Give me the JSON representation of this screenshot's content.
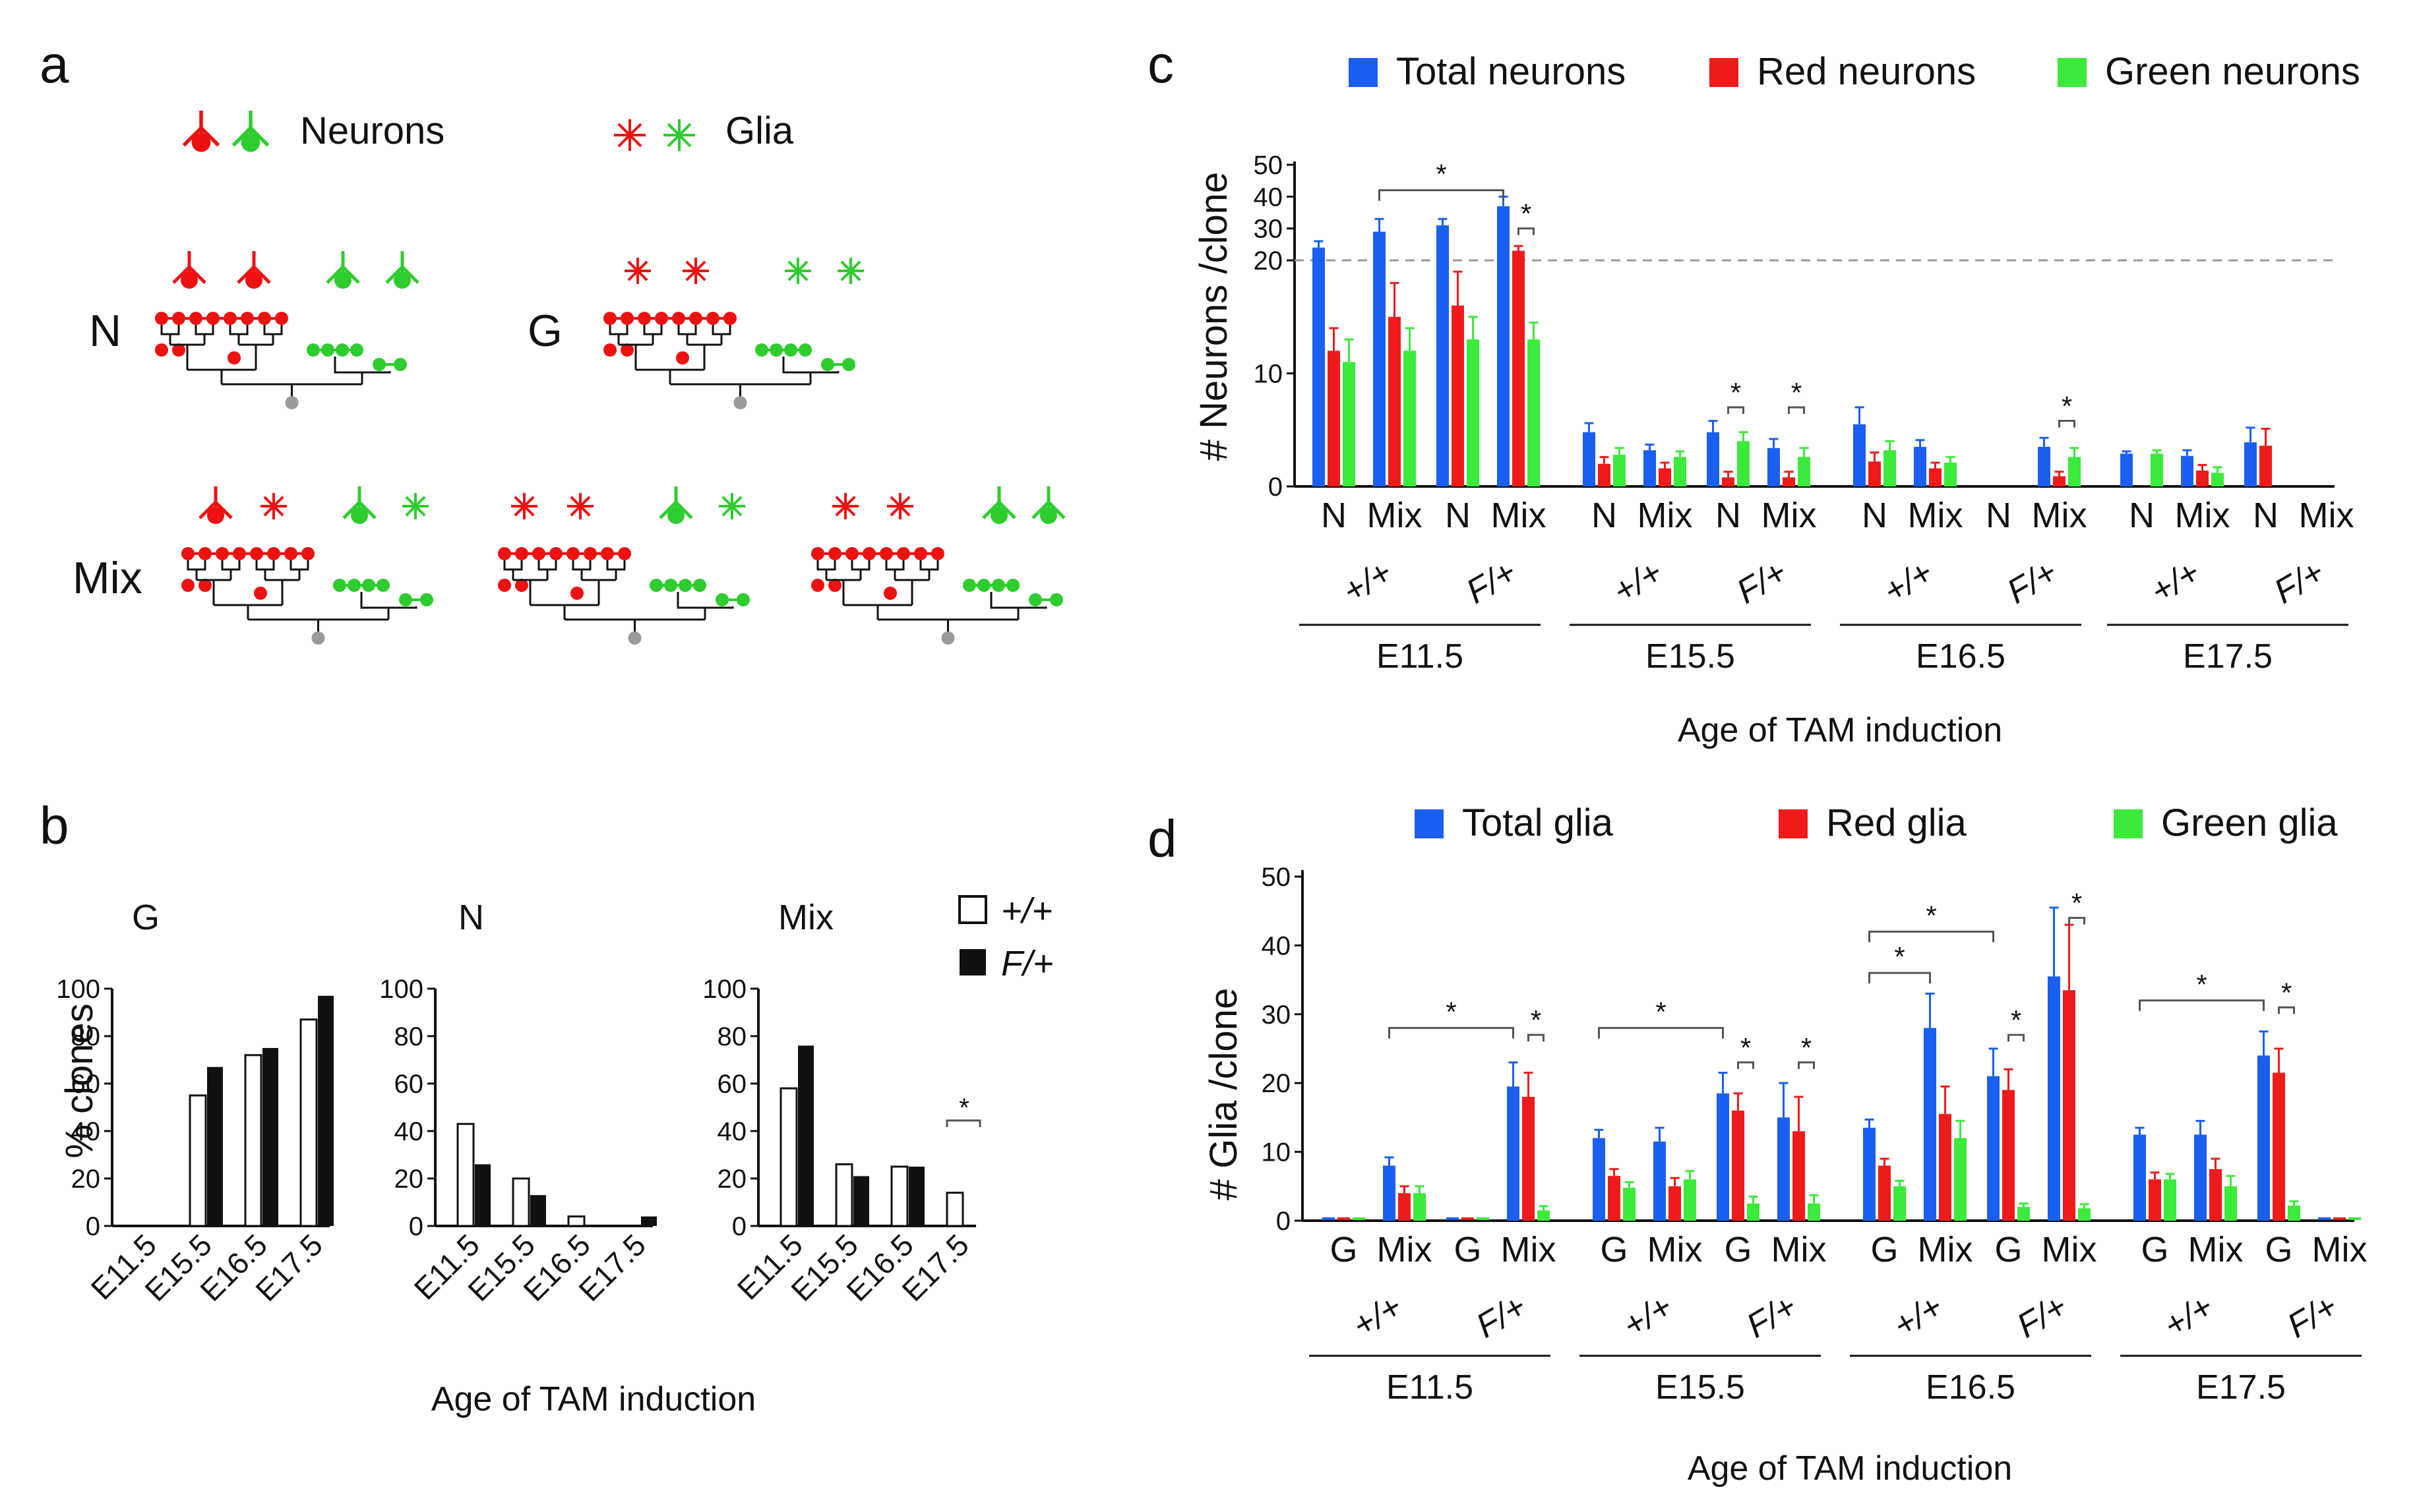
{
  "colors": {
    "red": "#ee1111",
    "green": "#2ecc2e",
    "blue": "#1656e8",
    "black": "#111111",
    "gray": "#999999",
    "chart_blue": "#1a5ff0",
    "chart_red": "#ef1b1b",
    "chart_green": "#3bea3b"
  },
  "panel_a": {
    "letter": "a",
    "legend_neurons": "Neurons",
    "legend_glia": "Glia",
    "label_n": "N",
    "label_g": "G",
    "label_mix": "Mix"
  },
  "panel_b": {
    "letter": "b",
    "legend_wt": "+/+",
    "legend_mut": "F/+",
    "xlabel": "Age of TAM induction",
    "ylabel": "% clones"
  },
  "panel_c": {
    "letter": "c",
    "ylabel": "# Neurons /clone",
    "xlabel": "Age of TAM induction"
  },
  "panel_d": {
    "letter": "d",
    "ylabel": "# Glia /clone",
    "xlabel": "Age of TAM induction"
  },
  "chart_data": [
    {
      "id": "b",
      "type": "bar",
      "panels": [
        {
          "title": "G",
          "categories": [
            "E11.5",
            "E15.5",
            "E16.5",
            "E17.5"
          ],
          "series": [
            {
              "name": "+/+",
              "values": [
                0,
                55,
                72,
                87
              ]
            },
            {
              "name": "F/+",
              "values": [
                0,
                67,
                75,
                97
              ]
            }
          ],
          "significant": []
        },
        {
          "title": "N",
          "categories": [
            "E11.5",
            "E15.5",
            "E16.5",
            "E17.5"
          ],
          "series": [
            {
              "name": "+/+",
              "values": [
                43,
                20,
                4,
                0
              ]
            },
            {
              "name": "F/+",
              "values": [
                26,
                13,
                0,
                4
              ]
            }
          ],
          "significant": []
        },
        {
          "title": "Mix",
          "categories": [
            "E11.5",
            "E15.5",
            "E16.5",
            "E17.5"
          ],
          "series": [
            {
              "name": "+/+",
              "values": [
                58,
                26,
                25,
                14
              ]
            },
            {
              "name": "F/+",
              "values": [
                76,
                21,
                25,
                0
              ]
            }
          ],
          "significant": [
            {
              "category": 3,
              "label": "*"
            }
          ]
        }
      ],
      "yticks": [
        0,
        20,
        40,
        60,
        80,
        100
      ],
      "ylim": [
        0,
        100
      ],
      "xlabel": "Age of TAM induction",
      "ylabel": "% clones"
    },
    {
      "id": "c",
      "type": "bar",
      "legend": [
        "Total neurons",
        "Red neurons",
        "Green neurons"
      ],
      "ylabel": "# Neurons /clone",
      "yticks_lower": [
        0,
        10,
        20
      ],
      "yticks_upper": [
        20,
        30,
        40,
        50
      ],
      "reference_line": 20,
      "xlabel": "Age of TAM induction",
      "stages": [
        {
          "stage": "E11.5",
          "genotypes": [
            {
              "genotype": "+/+",
              "clusters": [
                {
                  "label": "N",
                  "values": [
                    24,
                    12,
                    11
                  ],
                  "errors": [
                    2,
                    2,
                    2
                  ]
                },
                {
                  "label": "Mix",
                  "values": [
                    29,
                    15,
                    12
                  ],
                  "errors": [
                    4,
                    3,
                    2
                  ]
                }
              ]
            },
            {
              "genotype": "F/+",
              "clusters": [
                {
                  "label": "N",
                  "values": [
                    31,
                    16,
                    13
                  ],
                  "errors": [
                    2,
                    3,
                    2
                  ]
                },
                {
                  "label": "Mix",
                  "values": [
                    37,
                    23,
                    13
                  ],
                  "errors": [
                    3,
                    1.5,
                    1.5
                  ]
                }
              ]
            }
          ]
        },
        {
          "stage": "E15.5",
          "genotypes": [
            {
              "genotype": "+/+",
              "clusters": [
                {
                  "label": "N",
                  "values": [
                    4.8,
                    2,
                    2.8
                  ],
                  "errors": [
                    0.8,
                    0.6,
                    0.6
                  ]
                },
                {
                  "label": "Mix",
                  "values": [
                    3.2,
                    1.6,
                    2.6
                  ],
                  "errors": [
                    0.5,
                    0.5,
                    0.5
                  ]
                }
              ]
            },
            {
              "genotype": "F/+",
              "clusters": [
                {
                  "label": "N",
                  "values": [
                    4.8,
                    0.8,
                    4
                  ],
                  "errors": [
                    1,
                    0.5,
                    0.8
                  ]
                },
                {
                  "label": "Mix",
                  "values": [
                    3.4,
                    0.8,
                    2.6
                  ],
                  "errors": [
                    0.8,
                    0.5,
                    0.8
                  ]
                }
              ]
            }
          ]
        },
        {
          "stage": "E16.5",
          "genotypes": [
            {
              "genotype": "+/+",
              "clusters": [
                {
                  "label": "N",
                  "values": [
                    5.5,
                    2.2,
                    3.2
                  ],
                  "errors": [
                    1.5,
                    0.8,
                    0.8
                  ]
                },
                {
                  "label": "Mix",
                  "values": [
                    3.5,
                    1.6,
                    2.1
                  ],
                  "errors": [
                    0.6,
                    0.5,
                    0.5
                  ]
                }
              ]
            },
            {
              "genotype": "F/+",
              "clusters": [
                {
                  "label": "N",
                  "values": [
                    0,
                    0,
                    0
                  ],
                  "errors": [
                    0,
                    0,
                    0
                  ]
                },
                {
                  "label": "Mix",
                  "values": [
                    3.5,
                    0.9,
                    2.6
                  ],
                  "errors": [
                    0.8,
                    0.4,
                    0.8
                  ]
                }
              ]
            }
          ]
        },
        {
          "stage": "E17.5",
          "genotypes": [
            {
              "genotype": "+/+",
              "clusters": [
                {
                  "label": "N",
                  "values": [
                    2.9,
                    0,
                    2.9
                  ],
                  "errors": [
                    0.2,
                    0,
                    0.3
                  ]
                },
                {
                  "label": "Mix",
                  "values": [
                    2.7,
                    1.4,
                    1.2
                  ],
                  "errors": [
                    0.5,
                    0.5,
                    0.5
                  ]
                }
              ]
            },
            {
              "genotype": "F/+",
              "clusters": [
                {
                  "label": "N",
                  "values": [
                    3.9,
                    3.6,
                    0
                  ],
                  "errors": [
                    1.3,
                    1.5,
                    0
                  ]
                },
                {
                  "label": "Mix",
                  "values": [
                    0,
                    0,
                    0
                  ],
                  "errors": [
                    0,
                    0,
                    0
                  ]
                }
              ]
            }
          ]
        }
      ],
      "significance": [
        {
          "type": "bracket",
          "from": {
            "stage": 0,
            "genotype": 0,
            "cluster": 1,
            "bar": 0
          },
          "to": {
            "stage": 0,
            "genotype": 1,
            "cluster": 1,
            "bar": 0
          },
          "value": 42,
          "label": "*"
        },
        {
          "type": "short",
          "stage": 0,
          "genotype": 1,
          "cluster": 1,
          "value": 30,
          "label": "*"
        },
        {
          "type": "short",
          "stage": 1,
          "genotype": 1,
          "cluster": 0,
          "value": 7,
          "label": "*"
        },
        {
          "type": "short",
          "stage": 1,
          "genotype": 1,
          "cluster": 1,
          "value": 7,
          "label": "*"
        },
        {
          "type": "short",
          "stage": 2,
          "genotype": 1,
          "cluster": 1,
          "value": 5.8,
          "label": "*"
        }
      ]
    },
    {
      "id": "d",
      "type": "bar",
      "legend": [
        "Total glia",
        "Red glia",
        "Green glia"
      ],
      "ylabel": "# Glia /clone",
      "yticks": [
        0,
        10,
        20,
        30,
        40,
        50
      ],
      "ylim": [
        0,
        50
      ],
      "xlabel": "Age of TAM induction",
      "stages": [
        {
          "stage": "E11.5",
          "genotypes": [
            {
              "genotype": "+/+",
              "clusters": [
                {
                  "label": "G",
                  "values": [
                    0,
                    0,
                    0
                  ],
                  "errors": [
                    0,
                    0,
                    0
                  ]
                },
                {
                  "label": "Mix",
                  "values": [
                    8,
                    4,
                    4
                  ],
                  "errors": [
                    1.2,
                    1,
                    1
                  ]
                }
              ]
            },
            {
              "genotype": "F/+",
              "clusters": [
                {
                  "label": "G",
                  "values": [
                    0,
                    0,
                    0
                  ],
                  "errors": [
                    0,
                    0,
                    0
                  ]
                },
                {
                  "label": "Mix",
                  "values": [
                    19.5,
                    18,
                    1.5
                  ],
                  "errors": [
                    3.5,
                    3.5,
                    0.6
                  ]
                }
              ]
            }
          ]
        },
        {
          "stage": "E15.5",
          "genotypes": [
            {
              "genotype": "+/+",
              "clusters": [
                {
                  "label": "G",
                  "values": [
                    12,
                    6.5,
                    4.8
                  ],
                  "errors": [
                    1.2,
                    1,
                    0.8
                  ]
                },
                {
                  "label": "Mix",
                  "values": [
                    11.5,
                    5,
                    6
                  ],
                  "errors": [
                    2,
                    1.2,
                    1.2
                  ]
                }
              ]
            },
            {
              "genotype": "F/+",
              "clusters": [
                {
                  "label": "G",
                  "values": [
                    18.5,
                    16,
                    2.5
                  ],
                  "errors": [
                    3,
                    2.5,
                    1
                  ]
                },
                {
                  "label": "Mix",
                  "values": [
                    15,
                    13,
                    2.5
                  ],
                  "errors": [
                    5,
                    5,
                    1.2
                  ]
                }
              ]
            }
          ]
        },
        {
          "stage": "E16.5",
          "genotypes": [
            {
              "genotype": "+/+",
              "clusters": [
                {
                  "label": "G",
                  "values": [
                    13.5,
                    8,
                    5
                  ],
                  "errors": [
                    1.2,
                    1,
                    0.8
                  ]
                },
                {
                  "label": "Mix",
                  "values": [
                    28,
                    15.5,
                    12
                  ],
                  "errors": [
                    5,
                    4,
                    2.5
                  ]
                }
              ]
            },
            {
              "genotype": "F/+",
              "clusters": [
                {
                  "label": "G",
                  "values": [
                    21,
                    19,
                    2
                  ],
                  "errors": [
                    4,
                    3,
                    0.5
                  ]
                },
                {
                  "label": "Mix",
                  "values": [
                    35.5,
                    33.5,
                    1.8
                  ],
                  "errors": [
                    10,
                    9.5,
                    0.6
                  ]
                }
              ]
            }
          ]
        },
        {
          "stage": "E17.5",
          "genotypes": [
            {
              "genotype": "+/+",
              "clusters": [
                {
                  "label": "G",
                  "values": [
                    12.5,
                    6,
                    6
                  ],
                  "errors": [
                    1,
                    1,
                    0.8
                  ]
                },
                {
                  "label": "Mix",
                  "values": [
                    12.5,
                    7.5,
                    5
                  ],
                  "errors": [
                    2,
                    1.5,
                    1.5
                  ]
                }
              ]
            },
            {
              "genotype": "F/+",
              "clusters": [
                {
                  "label": "G",
                  "values": [
                    24,
                    21.5,
                    2.2
                  ],
                  "errors": [
                    3.5,
                    3.5,
                    0.6
                  ]
                },
                {
                  "label": "Mix",
                  "values": [
                    0,
                    0,
                    0
                  ],
                  "errors": [
                    0,
                    0,
                    0
                  ]
                }
              ]
            }
          ]
        }
      ],
      "significance": [
        {
          "type": "bracket",
          "from": {
            "stage": 0,
            "genotype": 0,
            "cluster": 1,
            "bar": 0
          },
          "to": {
            "stage": 0,
            "genotype": 1,
            "cluster": 1,
            "bar": 0
          },
          "value": 28,
          "label": "*"
        },
        {
          "type": "short",
          "stage": 0,
          "genotype": 1,
          "cluster": 1,
          "value": 27,
          "label": "*"
        },
        {
          "type": "bracket",
          "from": {
            "stage": 1,
            "genotype": 0,
            "cluster": 0,
            "bar": 0
          },
          "to": {
            "stage": 1,
            "genotype": 1,
            "cluster": 0,
            "bar": 0
          },
          "value": 28,
          "label": "*"
        },
        {
          "type": "short",
          "stage": 1,
          "genotype": 1,
          "cluster": 0,
          "value": 23,
          "label": "*"
        },
        {
          "type": "short",
          "stage": 1,
          "genotype": 1,
          "cluster": 1,
          "value": 23,
          "label": "*"
        },
        {
          "type": "bracket",
          "from": {
            "stage": 2,
            "genotype": 0,
            "cluster": 0,
            "bar": 0
          },
          "to": {
            "stage": 2,
            "genotype": 0,
            "cluster": 1,
            "bar": 0
          },
          "value": 36,
          "label": "*"
        },
        {
          "type": "bracket",
          "from": {
            "stage": 2,
            "genotype": 0,
            "cluster": 0,
            "bar": 0
          },
          "to": {
            "stage": 2,
            "genotype": 1,
            "cluster": 0,
            "bar": 0
          },
          "value": 42,
          "label": "*"
        },
        {
          "type": "short",
          "stage": 2,
          "genotype": 1,
          "cluster": 0,
          "value": 27,
          "label": "*"
        },
        {
          "type": "short",
          "stage": 2,
          "genotype": 1,
          "cluster": 1,
          "value": 44,
          "label": "*"
        },
        {
          "type": "bracket",
          "from": {
            "stage": 3,
            "genotype": 0,
            "cluster": 0,
            "bar": 0
          },
          "to": {
            "stage": 3,
            "genotype": 1,
            "cluster": 0,
            "bar": 0
          },
          "value": 32,
          "label": "*"
        },
        {
          "type": "short",
          "stage": 3,
          "genotype": 1,
          "cluster": 0,
          "value": 31,
          "label": "*"
        }
      ]
    }
  ]
}
